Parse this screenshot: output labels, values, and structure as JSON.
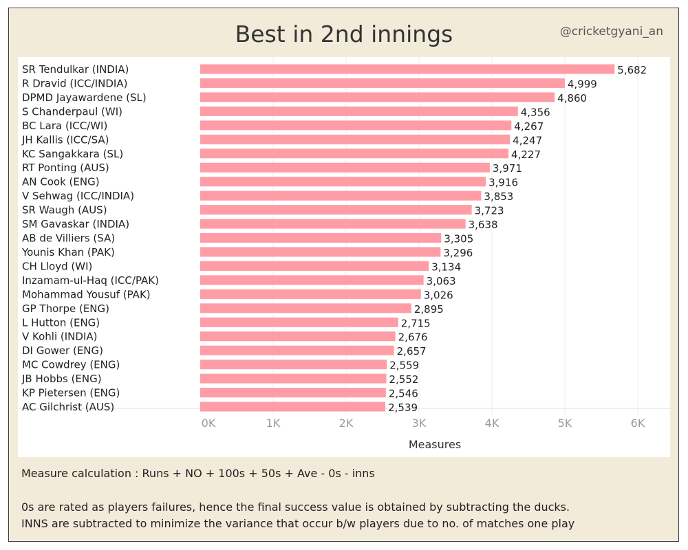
{
  "header": {
    "title": "Best in 2nd innings",
    "handle": "@cricketgyani_an"
  },
  "notes": {
    "calc": "Measure calculation : Runs + NO + 100s + 50s + Ave - 0s - inns",
    "line1": "0s are rated as players failures, hence the final success value is obtained by subtracting the ducks.",
    "line2": "INNS are subtracted to minimize the variance that occur b/w players due to no. of matches one play"
  },
  "chart_data": {
    "type": "bar",
    "orientation": "horizontal",
    "categories": [
      "SR Tendulkar (INDIA)",
      "R Dravid (ICC/INDIA)",
      "DPMD Jayawardene (SL)",
      "S Chanderpaul (WI)",
      "BC Lara (ICC/WI)",
      "JH Kallis (ICC/SA)",
      "KC Sangakkara (SL)",
      "RT Ponting (AUS)",
      "AN Cook (ENG)",
      "V Sehwag (ICC/INDIA)",
      "SR Waugh (AUS)",
      "SM Gavaskar (INDIA)",
      "AB de Villiers (SA)",
      "Younis Khan (PAK)",
      "CH Lloyd (WI)",
      "Inzamam-ul-Haq (ICC/PAK)",
      "Mohammad Yousuf (PAK)",
      "GP Thorpe (ENG)",
      "L Hutton (ENG)",
      "V Kohli (INDIA)",
      "DI Gower (ENG)",
      "MC Cowdrey (ENG)",
      "JB Hobbs (ENG)",
      "KP Pietersen (ENG)",
      "AC Gilchrist (AUS)"
    ],
    "values": [
      5682,
      4999,
      4860,
      4356,
      4267,
      4247,
      4227,
      3971,
      3916,
      3853,
      3723,
      3638,
      3305,
      3296,
      3134,
      3063,
      3026,
      2895,
      2715,
      2676,
      2657,
      2559,
      2552,
      2546,
      2539
    ],
    "value_labels": [
      "5,682",
      "4,999",
      "4,860",
      "4,356",
      "4,267",
      "4,247",
      "4,227",
      "3,971",
      "3,916",
      "3,853",
      "3,723",
      "3,638",
      "3,305",
      "3,296",
      "3,134",
      "3,063",
      "3,026",
      "2,895",
      "2,715",
      "2,676",
      "2,657",
      "2,559",
      "2,552",
      "2,546",
      "2,539"
    ],
    "xticks": [
      0,
      1000,
      2000,
      3000,
      4000,
      5000,
      6000
    ],
    "xtick_labels": [
      "0K",
      "1K",
      "2K",
      "3K",
      "4K",
      "5K",
      "6K"
    ],
    "xlabel": "Measures",
    "xlim": [
      0,
      6000
    ],
    "grid": "vertical",
    "bar_color": "#ff9da7"
  }
}
